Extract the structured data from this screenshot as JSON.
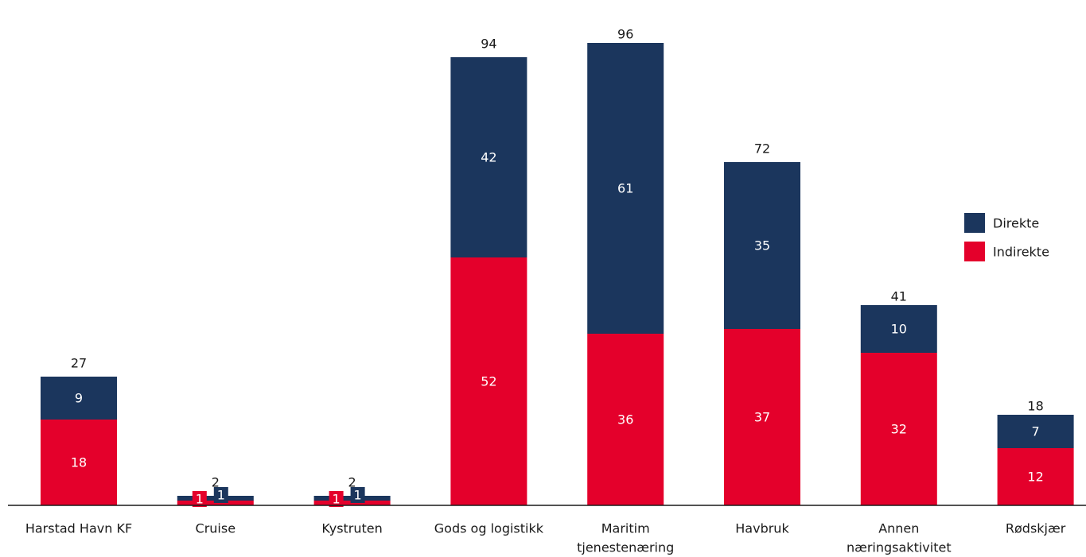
{
  "chart_data": {
    "type": "bar",
    "stacked": true,
    "categories": [
      [
        "Harstad Havn KF"
      ],
      [
        "Cruise"
      ],
      [
        "Kystruten"
      ],
      [
        "Gods og logistikk"
      ],
      [
        "Maritim",
        "tjenestenæring"
      ],
      [
        "Havbruk"
      ],
      [
        "Annen",
        "næringsaktivitet"
      ],
      [
        "Rødskjær"
      ]
    ],
    "series": [
      {
        "name": "Indirekte",
        "color": "#e4002b",
        "values": [
          18,
          1,
          1,
          52,
          36,
          37,
          32,
          12
        ]
      },
      {
        "name": "Direkte",
        "color": "#1b365d",
        "values": [
          9,
          1,
          1,
          42,
          61,
          35,
          10,
          7
        ]
      }
    ],
    "totals": [
      27,
      2,
      2,
      94,
      96,
      72,
      41,
      18
    ],
    "ylim": [
      0,
      100
    ],
    "legend": {
      "position": "right",
      "order": [
        "Direkte",
        "Indirekte"
      ]
    },
    "grid": false,
    "title": "",
    "xlabel": "",
    "ylabel": ""
  }
}
